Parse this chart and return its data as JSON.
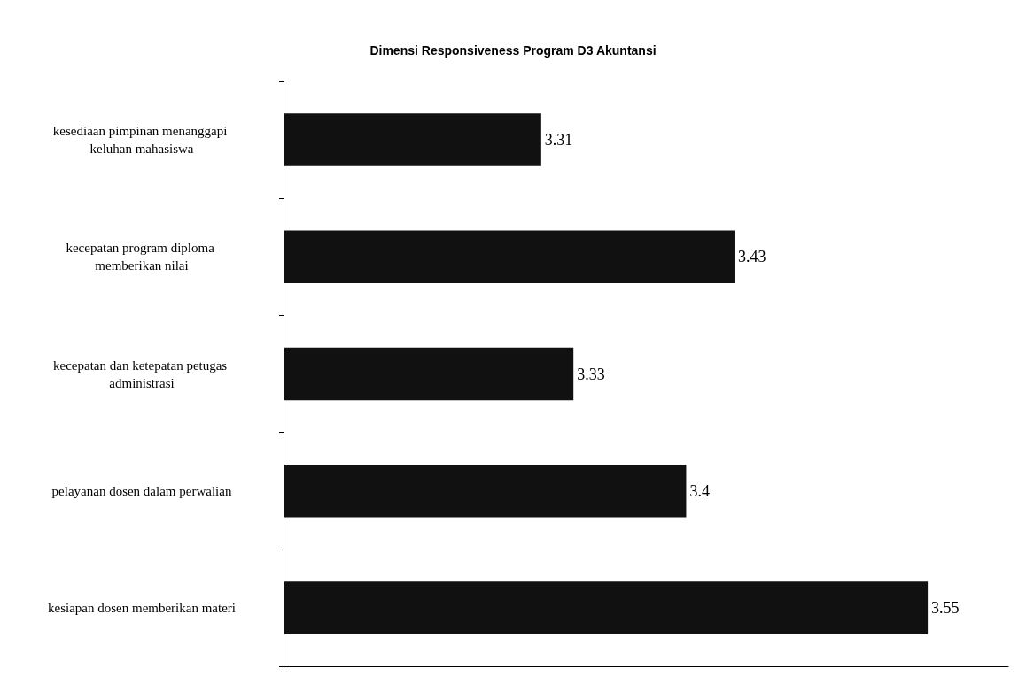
{
  "chart_data": {
    "type": "bar",
    "orientation": "horizontal",
    "title": "Dimensi Responsiveness Program D3 Akuntansi",
    "categories": [
      "kesediaan pimpinan menanggapi keluhan mahasiswa",
      "kecepatan program diploma memberikan nilai",
      "kecepatan dan ketepatan petugas administrasi",
      "pelayanan dosen dalam perwalian",
      "kesiapan dosen memberikan materi"
    ],
    "values": [
      3.31,
      3.43,
      3.33,
      3.4,
      3.55
    ],
    "color": "#111111",
    "xlim": [
      3.15,
      3.6
    ],
    "data_labels": true,
    "grid": false,
    "tick_labels": "y"
  }
}
